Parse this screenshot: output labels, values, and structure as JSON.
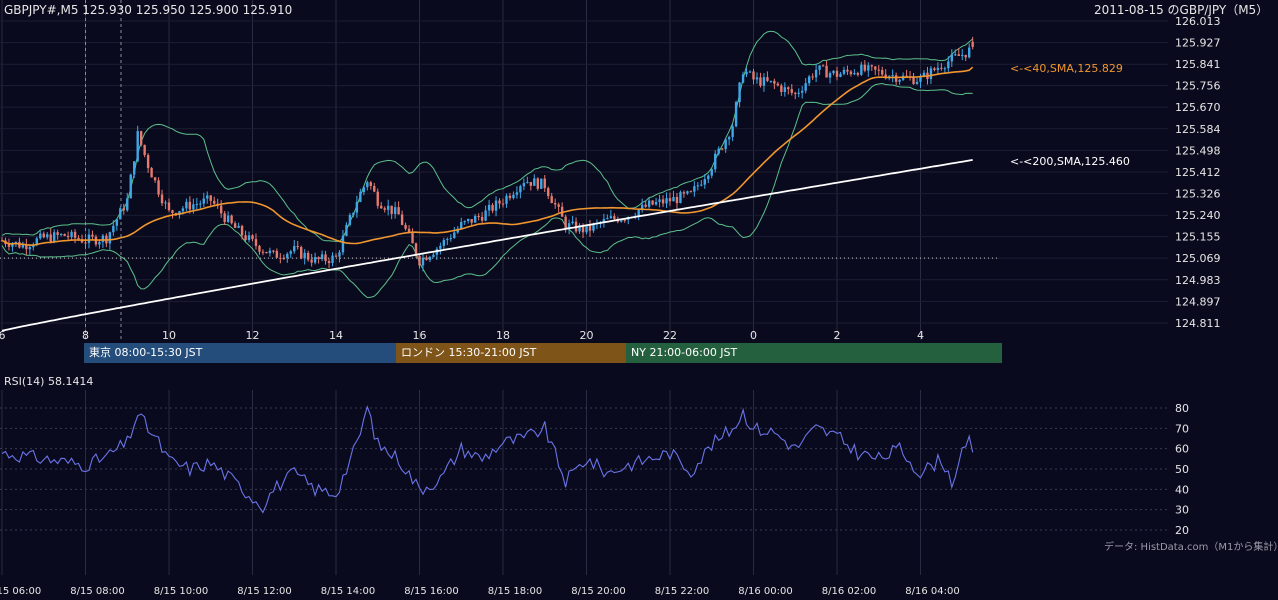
{
  "header": {
    "symbol_info": "GBPJPY#,M5 125.930 125.950 125.900 125.910",
    "title": "2011-08-15 のGBP/JPY（M5）"
  },
  "rsi_label": "RSI(14) 58.1414",
  "source_note": "データ: HistData.com（M1から集計）",
  "colors": {
    "background": "#0a0a1e",
    "candle_up": "#3fa7e6",
    "candle_down": "#e57a6e",
    "sma40": "#f0962e",
    "sma200": "#ffffff",
    "bollinger": "#5cc08a",
    "rsi": "#6a74e8",
    "tokyo": "#244d7c",
    "london": "#7e5418",
    "ny": "#24603e"
  },
  "sessions": [
    {
      "label": "東京 08:00-15:30 JST",
      "start_hour": 8.0,
      "end_hour": 15.5
    },
    {
      "label": "ロンドン 15:30-21:00 JST",
      "start_hour": 15.5,
      "end_hour": 21.0
    },
    {
      "label": "NY 21:00-06:00 JST",
      "start_hour": 21.0,
      "end_hour": 30.0
    }
  ],
  "chart_data": [
    {
      "type": "candlestick",
      "title": "2011-08-15 のGBP/JPY（M5）",
      "series_name": "GBPJPY#,M5",
      "timeframe_minutes": 5,
      "start_time": "8/15 06:00",
      "x_axis_ticks": [
        "6",
        "8",
        "10",
        "12",
        "14",
        "16",
        "18",
        "20",
        "22",
        "0",
        "2",
        "4"
      ],
      "x_tick_hours": [
        6,
        8,
        10,
        12,
        14,
        16,
        18,
        20,
        22,
        24,
        26,
        28
      ],
      "y_axis_ticks": [
        124.811,
        124.897,
        124.983,
        125.069,
        125.155,
        125.24,
        125.326,
        125.412,
        125.498,
        125.584,
        125.67,
        125.756,
        125.841,
        125.927,
        126.013
      ],
      "ylim": [
        124.811,
        126.013
      ],
      "dotted_level": 125.069,
      "session_start_markers_hours": [
        8.0,
        8.85
      ],
      "last_bar": {
        "open": 125.93,
        "high": 125.95,
        "low": 125.9,
        "close": 125.91
      },
      "close_anchors": [
        [
          6.0,
          125.14
        ],
        [
          6.5,
          125.12
        ],
        [
          7.0,
          125.15
        ],
        [
          7.5,
          125.16
        ],
        [
          8.0,
          125.14
        ],
        [
          8.5,
          125.15
        ],
        [
          9.0,
          125.3
        ],
        [
          9.25,
          125.56
        ],
        [
          9.5,
          125.44
        ],
        [
          9.75,
          125.34
        ],
        [
          10.0,
          125.25
        ],
        [
          10.5,
          125.28
        ],
        [
          11.0,
          125.3
        ],
        [
          11.5,
          125.2
        ],
        [
          12.0,
          125.13
        ],
        [
          12.5,
          125.08
        ],
        [
          13.0,
          125.1
        ],
        [
          13.5,
          125.06
        ],
        [
          14.0,
          125.07
        ],
        [
          14.5,
          125.3
        ],
        [
          14.75,
          125.38
        ],
        [
          15.0,
          125.3
        ],
        [
          15.5,
          125.24
        ],
        [
          16.0,
          125.06
        ],
        [
          16.5,
          125.12
        ],
        [
          17.0,
          125.2
        ],
        [
          17.5,
          125.24
        ],
        [
          18.0,
          125.3
        ],
        [
          18.5,
          125.38
        ],
        [
          19.0,
          125.36
        ],
        [
          19.5,
          125.2
        ],
        [
          20.0,
          125.18
        ],
        [
          20.5,
          125.22
        ],
        [
          21.0,
          125.24
        ],
        [
          21.5,
          125.28
        ],
        [
          22.0,
          125.3
        ],
        [
          22.5,
          125.32
        ],
        [
          23.0,
          125.44
        ],
        [
          23.5,
          125.6
        ],
        [
          23.75,
          125.82
        ],
        [
          24.0,
          125.78
        ],
        [
          24.5,
          125.76
        ],
        [
          25.0,
          125.72
        ],
        [
          25.5,
          125.82
        ],
        [
          26.0,
          125.8
        ],
        [
          26.5,
          125.82
        ],
        [
          27.0,
          125.81
        ],
        [
          27.5,
          125.79
        ],
        [
          28.0,
          125.78
        ],
        [
          28.5,
          125.84
        ],
        [
          29.0,
          125.88
        ],
        [
          29.33,
          125.91
        ]
      ],
      "series": [
        {
          "name": "40,SMA",
          "last_value": 125.829,
          "label": "<-<40,SMA,125.829"
        },
        {
          "name": "200,SMA",
          "last_value": 125.46,
          "label": "<-<200,SMA,125.460"
        },
        {
          "name": "Bollinger Bands",
          "period": 20
        }
      ]
    },
    {
      "type": "line",
      "title": "RSI(14) 58.1414",
      "series": [
        {
          "name": "RSI(14)",
          "last_value": 58.1414
        }
      ],
      "y_axis_ticks": [
        20,
        30,
        40,
        50,
        60,
        70,
        80
      ],
      "ylim": [
        15,
        85
      ],
      "x_axis_ticks": [
        "8/15 06:00",
        "8/15 08:00",
        "8/15 10:00",
        "8/15 12:00",
        "8/15 14:00",
        "8/15 16:00",
        "8/15 18:00",
        "8/15 20:00",
        "8/15 22:00",
        "8/16 00:00",
        "8/16 02:00",
        "8/16 04:00"
      ],
      "value_anchors": [
        [
          6.0,
          58
        ],
        [
          7.0,
          55
        ],
        [
          8.0,
          52
        ],
        [
          8.5,
          56
        ],
        [
          9.0,
          63
        ],
        [
          9.25,
          77
        ],
        [
          9.5,
          70
        ],
        [
          9.75,
          63
        ],
        [
          10.0,
          54
        ],
        [
          10.5,
          50
        ],
        [
          11.0,
          53
        ],
        [
          11.5,
          45
        ],
        [
          12.0,
          36
        ],
        [
          12.25,
          32
        ],
        [
          12.5,
          40
        ],
        [
          13.0,
          48
        ],
        [
          13.5,
          40
        ],
        [
          14.0,
          38
        ],
        [
          14.5,
          62
        ],
        [
          14.75,
          80
        ],
        [
          15.0,
          62
        ],
        [
          15.5,
          55
        ],
        [
          16.0,
          40
        ],
        [
          16.5,
          45
        ],
        [
          17.0,
          60
        ],
        [
          17.5,
          55
        ],
        [
          18.0,
          63
        ],
        [
          18.5,
          65
        ],
        [
          19.0,
          70
        ],
        [
          19.5,
          44
        ],
        [
          20.0,
          55
        ],
        [
          20.5,
          48
        ],
        [
          21.0,
          52
        ],
        [
          21.5,
          55
        ],
        [
          22.0,
          58
        ],
        [
          22.5,
          49
        ],
        [
          23.0,
          62
        ],
        [
          23.5,
          70
        ],
        [
          23.75,
          78
        ],
        [
          24.0,
          70
        ],
        [
          24.5,
          68
        ],
        [
          25.0,
          60
        ],
        [
          25.5,
          70
        ],
        [
          26.0,
          66
        ],
        [
          26.5,
          58
        ],
        [
          27.0,
          55
        ],
        [
          27.5,
          60
        ],
        [
          28.0,
          48
        ],
        [
          28.5,
          55
        ],
        [
          28.75,
          44
        ],
        [
          29.0,
          57
        ],
        [
          29.25,
          66
        ],
        [
          29.33,
          58
        ]
      ]
    }
  ]
}
